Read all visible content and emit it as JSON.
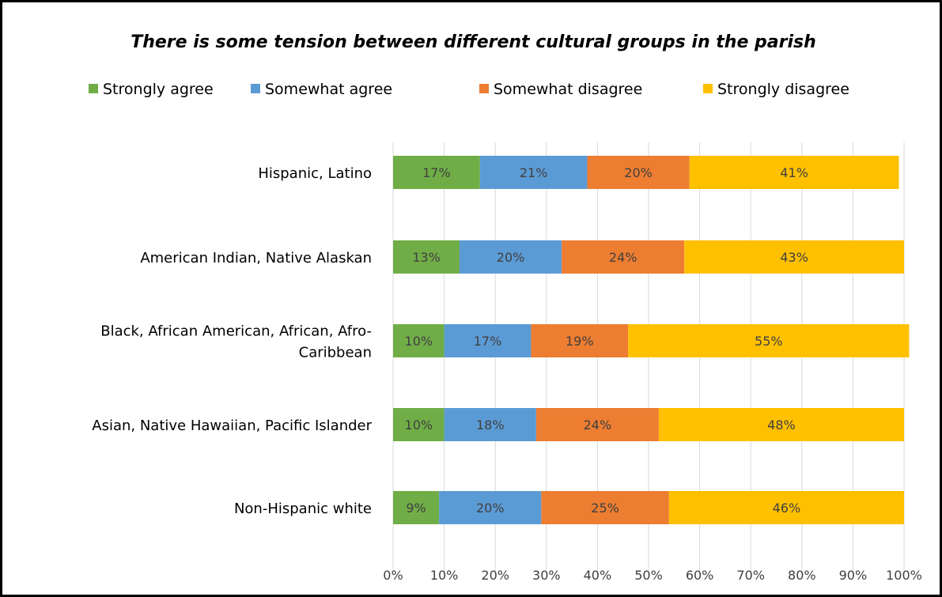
{
  "chart_data": {
    "type": "bar",
    "orientation": "horizontal",
    "stacked": true,
    "title": "There is some tension between different cultural groups in the parish",
    "xlabel": "",
    "ylabel": "",
    "xlim": [
      0,
      100
    ],
    "grid": true,
    "legend_position": "top",
    "categories": [
      "Hispanic, Latino",
      "American Indian, Native Alaskan",
      "Black, African American, African, Afro-Caribbean",
      "Asian, Native Hawaiian, Pacific Islander",
      "Non-Hispanic white"
    ],
    "category_lines": [
      [
        "Hispanic, Latino"
      ],
      [
        "American Indian, Native Alaskan"
      ],
      [
        "Black, African American, African, Afro-",
        "Caribbean"
      ],
      [
        "Asian, Native Hawaiian, Pacific Islander"
      ],
      [
        "Non-Hispanic white"
      ]
    ],
    "series": [
      {
        "name": "Strongly agree",
        "color": "#70ad47",
        "values": [
          17,
          13,
          10,
          10,
          9
        ],
        "labels": [
          "17%",
          "13%",
          "10%",
          "10%",
          "9%"
        ]
      },
      {
        "name": "Somewhat agree",
        "color": "#5b9bd5",
        "values": [
          21,
          20,
          17,
          18,
          20
        ],
        "labels": [
          "21%",
          "20%",
          "17%",
          "18%",
          "20%"
        ]
      },
      {
        "name": "Somewhat disagree",
        "color": "#ed7d31",
        "values": [
          20,
          24,
          19,
          24,
          25
        ],
        "labels": [
          "20%",
          "24%",
          "19%",
          "24%",
          "25%"
        ]
      },
      {
        "name": "Strongly disagree",
        "color": "#ffc000",
        "values": [
          41,
          43,
          55,
          48,
          46
        ],
        "labels": [
          "41%",
          "43%",
          "55%",
          "48%",
          "46%"
        ]
      }
    ],
    "ticks": [
      0,
      10,
      20,
      30,
      40,
      50,
      60,
      70,
      80,
      90,
      100
    ],
    "tick_labels": [
      "0%",
      "10%",
      "20%",
      "30%",
      "40%",
      "50%",
      "60%",
      "70%",
      "80%",
      "90%",
      "100%"
    ]
  }
}
